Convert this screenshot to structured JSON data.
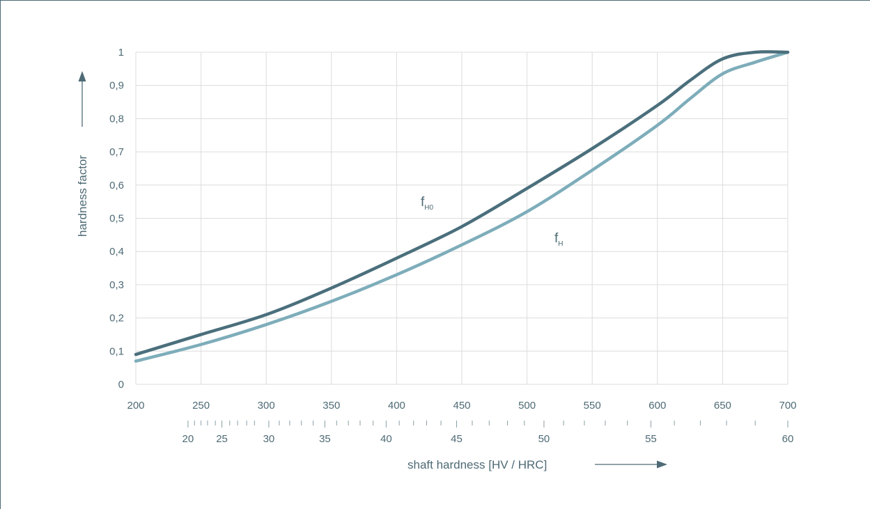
{
  "chart_data": {
    "type": "line",
    "xlabel": "shaft hardness [HV / HRC]",
    "ylabel": "hardness factor",
    "xlim": [
      200,
      700
    ],
    "ylim": [
      0,
      1
    ],
    "x_ticks": [
      200,
      250,
      300,
      350,
      400,
      450,
      500,
      550,
      600,
      650,
      700
    ],
    "y_ticks": [
      "0",
      "0,1",
      "0,2",
      "0,3",
      "0,4",
      "0,5",
      "0,6",
      "0,7",
      "0,8",
      "0,9",
      "1"
    ],
    "y_tick_values": [
      0,
      0.1,
      0.2,
      0.3,
      0.4,
      0.5,
      0.6,
      0.7,
      0.8,
      0.9,
      1.0
    ],
    "secondary_x_axis": {
      "label_ticks": [
        {
          "label": "20",
          "hv": 240
        },
        {
          "label": "25",
          "hv": 266
        },
        {
          "label": "30",
          "hv": 302
        },
        {
          "label": "35",
          "hv": 345
        },
        {
          "label": "40",
          "hv": 392
        },
        {
          "label": "45",
          "hv": 446
        },
        {
          "label": "50",
          "hv": 513
        },
        {
          "label": "55",
          "hv": 595
        },
        {
          "label": "60",
          "hv": 700
        }
      ],
      "minor_ticks_hv": [
        240,
        245,
        250,
        255,
        261,
        266,
        272,
        278,
        285,
        291,
        302,
        310,
        318,
        327,
        336,
        345,
        354,
        363,
        372,
        382,
        392,
        402,
        413,
        423,
        434,
        446,
        458,
        471,
        485,
        498,
        513,
        528,
        544,
        560,
        577,
        595,
        613,
        633,
        653,
        675,
        700
      ]
    },
    "grid": true,
    "series": [
      {
        "name": "f",
        "subscript": "H0",
        "color": "#4b6f7c",
        "x": [
          200,
          250,
          300,
          350,
          400,
          450,
          500,
          550,
          600,
          625,
          650,
          675,
          700
        ],
        "y": [
          0.09,
          0.15,
          0.21,
          0.29,
          0.38,
          0.475,
          0.59,
          0.71,
          0.84,
          0.915,
          0.98,
          1.0,
          1.0
        ]
      },
      {
        "name": "f",
        "subscript": "H",
        "color": "#7eadba",
        "x": [
          200,
          250,
          300,
          350,
          400,
          450,
          500,
          550,
          600,
          625,
          650,
          675,
          700
        ],
        "y": [
          0.07,
          0.12,
          0.18,
          0.25,
          0.33,
          0.42,
          0.52,
          0.645,
          0.78,
          0.86,
          0.935,
          0.97,
          1.0
        ]
      }
    ]
  }
}
